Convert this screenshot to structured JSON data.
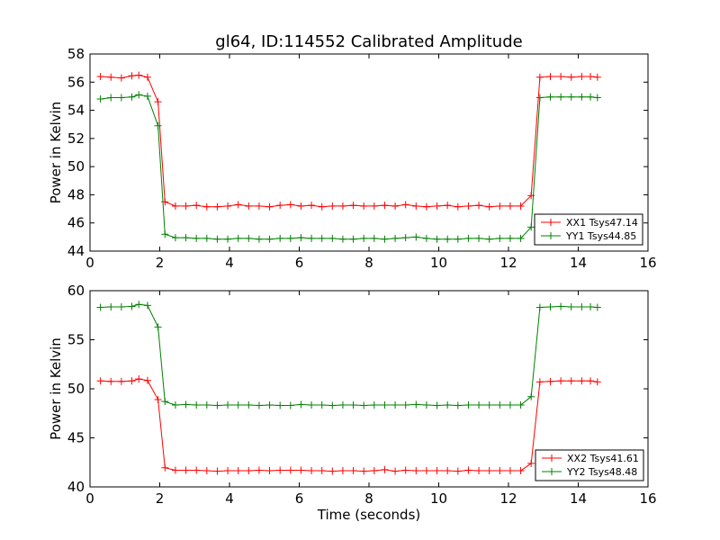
{
  "chart_data": [
    {
      "type": "line",
      "title": "gl64, ID:114552 Calibrated Amplitude",
      "xlabel": "",
      "ylabel": "Power in Kelvin",
      "xlim": [
        0,
        16
      ],
      "ylim": [
        44,
        58
      ],
      "xticks": [
        "0",
        "2",
        "4",
        "6",
        "8",
        "10",
        "12",
        "14",
        "16"
      ],
      "yticks": [
        "44",
        "46",
        "48",
        "50",
        "52",
        "54",
        "56",
        "58"
      ],
      "grid": false,
      "legend_position": "lower-right",
      "x": [
        0.3,
        0.6,
        0.9,
        1.2,
        1.4,
        1.65,
        1.95,
        2.15,
        2.45,
        2.75,
        3.05,
        3.35,
        3.65,
        3.95,
        4.25,
        4.55,
        4.85,
        5.15,
        5.45,
        5.75,
        6.05,
        6.35,
        6.65,
        6.95,
        7.25,
        7.55,
        7.85,
        8.15,
        8.45,
        8.75,
        9.05,
        9.35,
        9.65,
        9.95,
        10.25,
        10.55,
        10.85,
        11.15,
        11.45,
        11.75,
        12.05,
        12.35,
        12.65,
        12.9,
        13.2,
        13.5,
        13.8,
        14.1,
        14.35,
        14.55
      ],
      "series": [
        {
          "name": "XX1 Tsys47.14",
          "color": "#ff0000",
          "values": [
            56.4,
            56.35,
            56.3,
            56.45,
            56.5,
            56.35,
            54.6,
            47.5,
            47.2,
            47.2,
            47.25,
            47.15,
            47.15,
            47.2,
            47.3,
            47.2,
            47.2,
            47.15,
            47.25,
            47.3,
            47.2,
            47.25,
            47.15,
            47.2,
            47.2,
            47.25,
            47.2,
            47.2,
            47.25,
            47.2,
            47.3,
            47.2,
            47.15,
            47.2,
            47.25,
            47.15,
            47.2,
            47.25,
            47.15,
            47.2,
            47.2,
            47.2,
            47.95,
            56.35,
            56.4,
            56.4,
            56.35,
            56.4,
            56.4,
            56.35
          ]
        },
        {
          "name": "YY1 Tsys44.85",
          "color": "#008000",
          "values": [
            54.8,
            54.9,
            54.9,
            54.95,
            55.1,
            55.0,
            52.9,
            45.2,
            44.95,
            44.95,
            44.9,
            44.9,
            44.85,
            44.85,
            44.9,
            44.9,
            44.85,
            44.85,
            44.9,
            44.9,
            44.95,
            44.9,
            44.9,
            44.9,
            44.85,
            44.85,
            44.9,
            44.9,
            44.85,
            44.9,
            44.95,
            45.0,
            44.9,
            44.85,
            44.85,
            44.85,
            44.9,
            44.9,
            44.85,
            44.9,
            44.9,
            44.9,
            45.7,
            54.9,
            54.95,
            54.95,
            54.95,
            54.95,
            54.95,
            54.9
          ]
        }
      ]
    },
    {
      "type": "line",
      "title": "",
      "xlabel": "Time (seconds)",
      "ylabel": "Power in Kelvin",
      "xlim": [
        0,
        16
      ],
      "ylim": [
        40,
        60
      ],
      "xticks": [
        "0",
        "2",
        "4",
        "6",
        "8",
        "10",
        "12",
        "14",
        "16"
      ],
      "yticks": [
        "40",
        "45",
        "50",
        "55",
        "60"
      ],
      "grid": false,
      "legend_position": "lower-right",
      "x": [
        0.3,
        0.6,
        0.9,
        1.2,
        1.4,
        1.65,
        1.95,
        2.15,
        2.45,
        2.75,
        3.05,
        3.35,
        3.65,
        3.95,
        4.25,
        4.55,
        4.85,
        5.15,
        5.45,
        5.75,
        6.05,
        6.35,
        6.65,
        6.95,
        7.25,
        7.55,
        7.85,
        8.15,
        8.45,
        8.75,
        9.05,
        9.35,
        9.65,
        9.95,
        10.25,
        10.55,
        10.85,
        11.15,
        11.45,
        11.75,
        12.05,
        12.35,
        12.65,
        12.9,
        13.2,
        13.5,
        13.8,
        14.1,
        14.35,
        14.55
      ],
      "series": [
        {
          "name": "XX2 Tsys41.61",
          "color": "#ff0000",
          "values": [
            50.8,
            50.75,
            50.75,
            50.8,
            51.0,
            50.85,
            48.9,
            41.95,
            41.7,
            41.7,
            41.7,
            41.65,
            41.6,
            41.65,
            41.65,
            41.65,
            41.7,
            41.65,
            41.7,
            41.7,
            41.7,
            41.65,
            41.65,
            41.6,
            41.65,
            41.65,
            41.6,
            41.65,
            41.75,
            41.6,
            41.7,
            41.65,
            41.65,
            41.65,
            41.65,
            41.6,
            41.7,
            41.65,
            41.65,
            41.65,
            41.65,
            41.65,
            42.4,
            50.7,
            50.75,
            50.8,
            50.8,
            50.8,
            50.8,
            50.7
          ]
        },
        {
          "name": "YY2 Tsys48.48",
          "color": "#008000",
          "values": [
            58.3,
            58.35,
            58.35,
            58.4,
            58.6,
            58.5,
            56.3,
            48.7,
            48.35,
            48.4,
            48.35,
            48.35,
            48.3,
            48.35,
            48.35,
            48.35,
            48.3,
            48.35,
            48.3,
            48.3,
            48.4,
            48.35,
            48.35,
            48.3,
            48.35,
            48.35,
            48.3,
            48.35,
            48.35,
            48.35,
            48.35,
            48.4,
            48.35,
            48.3,
            48.35,
            48.3,
            48.35,
            48.35,
            48.35,
            48.35,
            48.35,
            48.35,
            49.2,
            58.3,
            58.35,
            58.4,
            58.35,
            58.35,
            58.35,
            58.3
          ]
        }
      ]
    }
  ]
}
